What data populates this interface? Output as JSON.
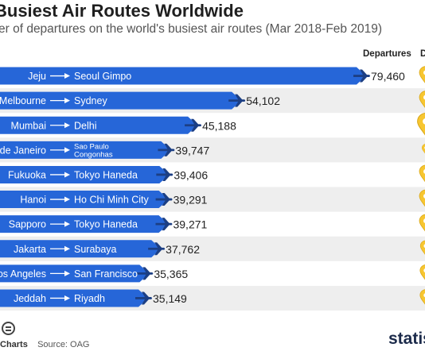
{
  "header": {
    "title": "Busiest Air Routes Worldwide",
    "subtitle": "er of departures on the world's busiest air routes (Mar 2018-Feb 2019)"
  },
  "columns": {
    "departures": "Departures",
    "second": "D"
  },
  "footer": {
    "charts_label": "Charts",
    "source": "Source: OAG",
    "brand": "statis"
  },
  "colors": {
    "bar": "#2666d8",
    "row_alt": "#eeeeee",
    "text": "#222222",
    "pin": "#f7c631",
    "pin_dark": "#d9a81c",
    "arrow": "#ffffff"
  },
  "chart_data": {
    "type": "bar",
    "orientation": "horizontal",
    "categories": [
      {
        "from": "Jeju",
        "to": "Seoul Gimpo"
      },
      {
        "from": "Melbourne",
        "to": "Sydney"
      },
      {
        "from": "Mumbai",
        "to": "Delhi"
      },
      {
        "from": "de Janeiro",
        "to": "Sao Paulo Congonhas",
        "to_lines": [
          "Sao Paulo",
          "Congonhas"
        ]
      },
      {
        "from": "Fukuoka",
        "to": "Tokyo Haneda"
      },
      {
        "from": "Hanoi",
        "to": "Ho Chi Minh City"
      },
      {
        "from": "Sapporo",
        "to": "Tokyo Haneda"
      },
      {
        "from": "Jakarta",
        "to": "Surabaya"
      },
      {
        "from": "os Angeles",
        "to": "San Francisco"
      },
      {
        "from": "Jeddah",
        "to": "Riyadh"
      }
    ],
    "values": [
      79460,
      54102,
      45188,
      39747,
      39406,
      39291,
      39271,
      37762,
      35365,
      35149
    ],
    "value_labels": [
      "79,460",
      "54,102",
      "45,188",
      "39,747",
      "39,406",
      "39,291",
      "39,271",
      "37,762",
      "35,365",
      "35,149"
    ],
    "marker_icon": "airplane-icon",
    "side_icon": "location-pin-icon",
    "pin_scale": [
      1.0,
      1.0,
      1.3,
      0.6,
      1.0,
      1.0,
      1.0,
      0.85,
      0.9,
      0.9
    ],
    "xlim": [
      0,
      79460
    ]
  }
}
